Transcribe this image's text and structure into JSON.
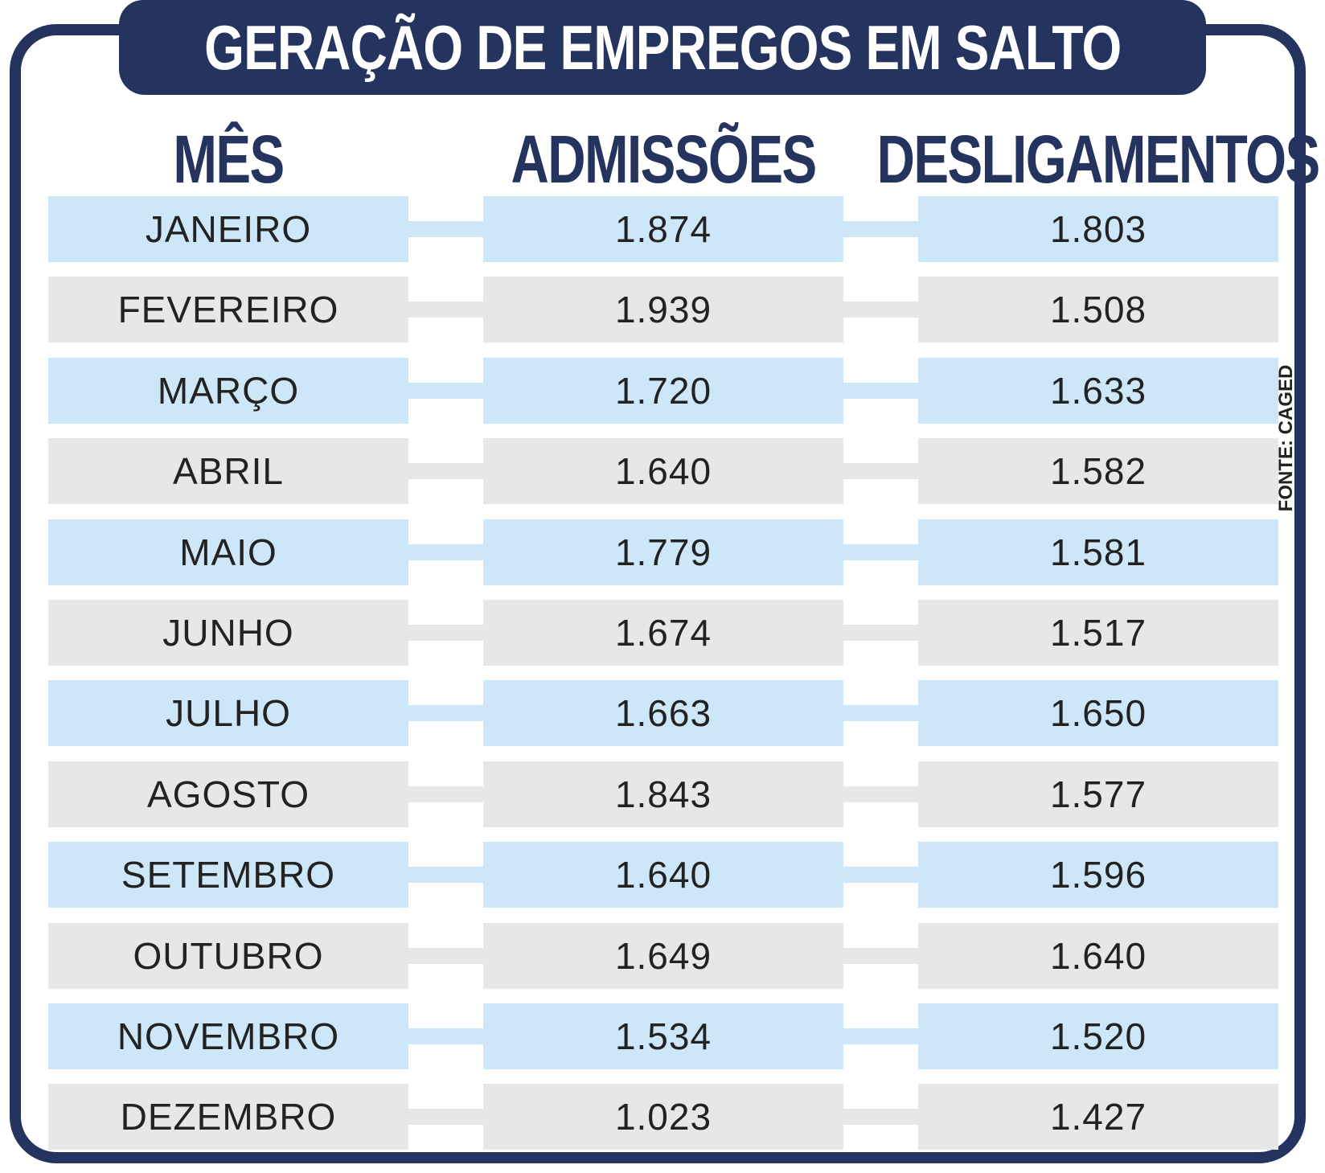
{
  "title": "GERAÇÃO DE EMPREGOS EM SALTO",
  "source": "FONTE: CAGED",
  "colors": {
    "navy": "#25345f",
    "blue_row": "#cde6f8",
    "gray_row": "#e6e7e9",
    "text": "#222222"
  },
  "chart_data": {
    "type": "table",
    "title": "GERAÇÃO DE EMPREGOS EM SALTO",
    "columns": [
      "MÊS",
      "ADMISSÕES",
      "DESLIGAMENTOS"
    ],
    "rows": [
      [
        "JANEIRO",
        "1.874",
        "1.803"
      ],
      [
        "FEVEREIRO",
        "1.939",
        "1.508"
      ],
      [
        "MARÇO",
        "1.720",
        "1.633"
      ],
      [
        "ABRIL",
        "1.640",
        "1.582"
      ],
      [
        "MAIO",
        "1.779",
        "1.581"
      ],
      [
        "JUNHO",
        "1.674",
        "1.517"
      ],
      [
        "JULHO",
        "1.663",
        "1.650"
      ],
      [
        "AGOSTO",
        "1.843",
        "1.577"
      ],
      [
        "SETEMBRO",
        "1.640",
        "1.596"
      ],
      [
        "OUTUBRO",
        "1.649",
        "1.640"
      ],
      [
        "NOVEMBRO",
        "1.534",
        "1.520"
      ],
      [
        "DEZEMBRO",
        "1.023",
        "1.427"
      ]
    ]
  }
}
